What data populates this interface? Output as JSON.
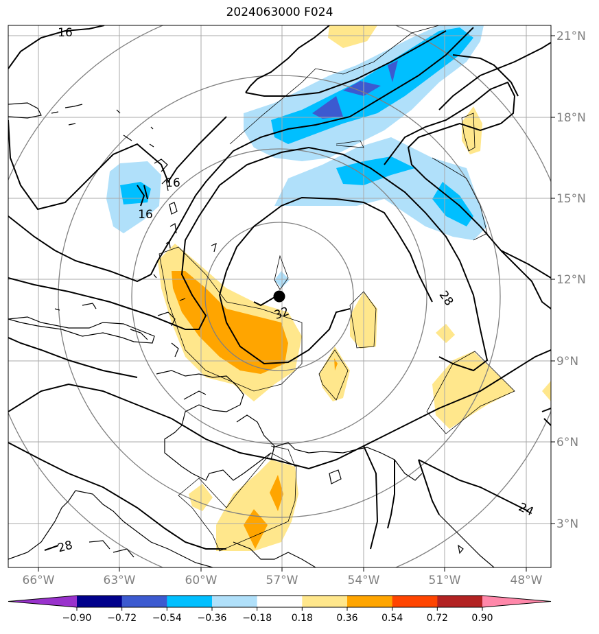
{
  "title": "2024063000 F024",
  "map": {
    "lon_labels": [
      "66°W",
      "63°W",
      "60°W",
      "57°W",
      "54°W",
      "51°W",
      "48°W"
    ],
    "lat_labels": [
      "21°N",
      "18°N",
      "15°N",
      "12°N",
      "9°N",
      "6°N",
      "3°N"
    ],
    "center_marker": {
      "lon": -57.0,
      "lat": 11.4
    },
    "contour_labels": [
      {
        "text": "16",
        "lon": -64.9,
        "lat": 20.6
      },
      {
        "text": "16",
        "lon": -59.9,
        "lat": 16.0
      },
      {
        "text": "16",
        "lon": -61.2,
        "lat": 14.6
      },
      {
        "text": "28",
        "lon": -50.9,
        "lat": 11.8
      },
      {
        "text": "32",
        "lon": -57.0,
        "lat": 10.8
      },
      {
        "text": "28",
        "lon": -64.9,
        "lat": 2.0
      },
      {
        "text": "24",
        "lon": -48.9,
        "lat": 3.5
      }
    ]
  },
  "colorbar": {
    "ticks": [
      "−0.90",
      "−0.72",
      "−0.54",
      "−0.36",
      "−0.18",
      "0.18",
      "0.36",
      "0.54",
      "0.72",
      "0.90"
    ],
    "colors": [
      "#9932cc",
      "#00008b",
      "#3c5ad0",
      "#00bfff",
      "#b0e0fa",
      "#ffffff",
      "#ffe78c",
      "#ffa500",
      "#ff4500",
      "#b22222",
      "#ff88aa"
    ]
  },
  "colors": {
    "grid": "#a9a9a9",
    "range_rings": "#808080",
    "coast": "#000000"
  }
}
